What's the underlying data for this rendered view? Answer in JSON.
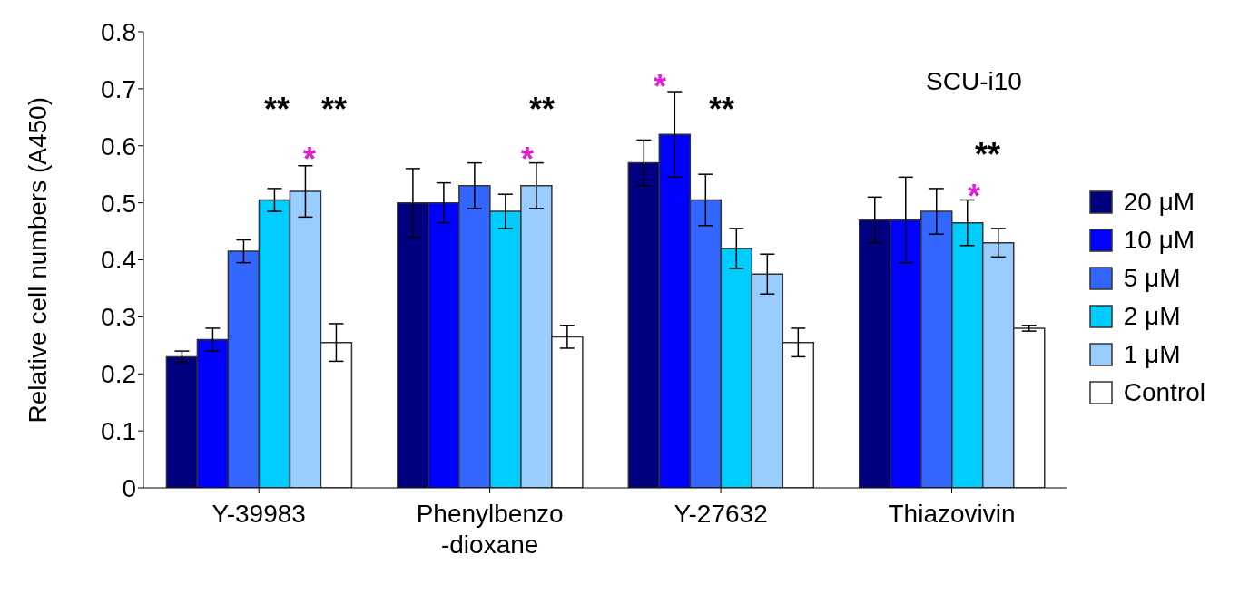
{
  "chart_data": {
    "type": "bar",
    "ylabel": "Relative cell numbers (A450)",
    "categories": [
      "Y-39983",
      "Phenylbenzo\n-dioxane",
      "Y-27632",
      "Thiazovivin"
    ],
    "series": [
      {
        "name": "20 μM",
        "color": "#000080",
        "values": [
          0.23,
          0.5,
          0.57,
          0.47
        ],
        "errors": [
          0.01,
          0.06,
          0.04,
          0.04
        ]
      },
      {
        "name": "10 μM",
        "color": "#0000ff",
        "values": [
          0.26,
          0.5,
          0.62,
          0.47
        ],
        "errors": [
          0.02,
          0.035,
          0.075,
          0.075
        ]
      },
      {
        "name": "5 μM",
        "color": "#3366ff",
        "values": [
          0.415,
          0.53,
          0.505,
          0.485
        ],
        "errors": [
          0.02,
          0.04,
          0.045,
          0.04
        ]
      },
      {
        "name": "2 μM",
        "color": "#00ccff",
        "values": [
          0.505,
          0.485,
          0.42,
          0.465
        ],
        "errors": [
          0.02,
          0.03,
          0.035,
          0.04
        ]
      },
      {
        "name": "1 μM",
        "color": "#99ccff",
        "values": [
          0.52,
          0.53,
          0.375,
          0.43
        ],
        "errors": [
          0.045,
          0.04,
          0.035,
          0.025
        ]
      },
      {
        "name": "Control",
        "color": "#ffffff",
        "values": [
          0.255,
          0.265,
          0.255,
          0.28
        ],
        "errors": [
          0.033,
          0.02,
          0.025,
          0.005
        ]
      }
    ],
    "ylim": [
      0,
      0.8
    ],
    "yticks": [
      0,
      0.1,
      0.2,
      0.3,
      0.4,
      0.5,
      0.6,
      0.7,
      0.8
    ],
    "legend": "right",
    "annotations": [
      "SCU-i10",
      "**",
      "**",
      "*",
      "**",
      "*",
      "*",
      "**",
      "**",
      "*"
    ]
  }
}
